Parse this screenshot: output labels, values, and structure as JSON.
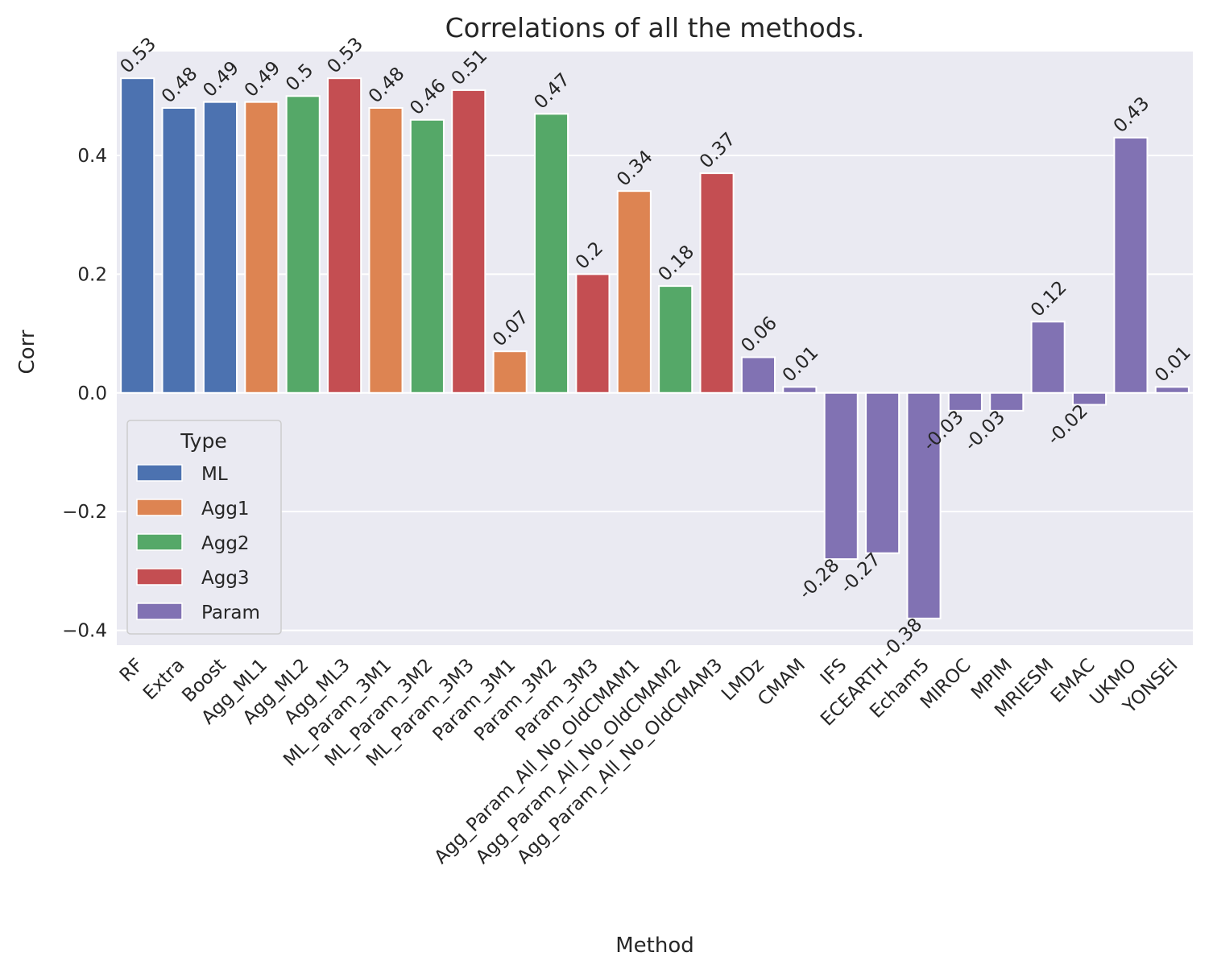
{
  "chart_data": {
    "type": "bar",
    "title": "Correlations of all the methods.",
    "xlabel": "Method",
    "ylabel": "Corr",
    "ylim": [
      -0.425,
      0.575
    ],
    "yticks": [
      {
        "value": -0.4,
        "label": "−0.4"
      },
      {
        "value": -0.2,
        "label": "−0.2"
      },
      {
        "value": 0.0,
        "label": "0.0"
      },
      {
        "value": 0.2,
        "label": "0.2"
      },
      {
        "value": 0.4,
        "label": "0.4"
      }
    ],
    "grid": true,
    "background": "#eaeaf2",
    "legend": {
      "title": "Type",
      "placement": "lower-left",
      "entries": [
        {
          "name": "ML",
          "color": "#4c72b0"
        },
        {
          "name": "Agg1",
          "color": "#dd8452"
        },
        {
          "name": "Agg2",
          "color": "#55a868"
        },
        {
          "name": "Agg3",
          "color": "#c44e52"
        },
        {
          "name": "Param",
          "color": "#8172b3"
        }
      ]
    },
    "bars": [
      {
        "category": "RF",
        "value": 0.53,
        "label": "0.53",
        "type": "ML"
      },
      {
        "category": "Extra",
        "value": 0.48,
        "label": "0.48",
        "type": "ML"
      },
      {
        "category": "Boost",
        "value": 0.49,
        "label": "0.49",
        "type": "ML"
      },
      {
        "category": "Agg_ML1",
        "value": 0.49,
        "label": "0.49",
        "type": "Agg1"
      },
      {
        "category": "Agg_ML2",
        "value": 0.5,
        "label": "0.5",
        "type": "Agg2"
      },
      {
        "category": "Agg_ML3",
        "value": 0.53,
        "label": "0.53",
        "type": "Agg3"
      },
      {
        "category": "ML_Param_3M1",
        "value": 0.48,
        "label": "0.48",
        "type": "Agg1"
      },
      {
        "category": "ML_Param_3M2",
        "value": 0.46,
        "label": "0.46",
        "type": "Agg2"
      },
      {
        "category": "ML_Param_3M3",
        "value": 0.51,
        "label": "0.51",
        "type": "Agg3"
      },
      {
        "category": "Param_3M1",
        "value": 0.07,
        "label": "0.07",
        "type": "Agg1"
      },
      {
        "category": "Param_3M2",
        "value": 0.47,
        "label": "0.47",
        "type": "Agg2"
      },
      {
        "category": "Param_3M3",
        "value": 0.2,
        "label": "0.2",
        "type": "Agg3"
      },
      {
        "category": "Agg_Param_All_No_OldCMAM1",
        "value": 0.34,
        "label": "0.34",
        "type": "Agg1"
      },
      {
        "category": "Agg_Param_All_No_OldCMAM2",
        "value": 0.18,
        "label": "0.18",
        "type": "Agg2"
      },
      {
        "category": "Agg_Param_All_No_OldCMAM3",
        "value": 0.37,
        "label": "0.37",
        "type": "Agg3"
      },
      {
        "category": "LMDz",
        "value": 0.06,
        "label": "0.06",
        "type": "Param"
      },
      {
        "category": "CMAM",
        "value": 0.01,
        "label": "0.01",
        "type": "Param"
      },
      {
        "category": "IFS",
        "value": -0.28,
        "label": "-0.28",
        "type": "Param"
      },
      {
        "category": "ECEARTH",
        "value": -0.27,
        "label": "-0.27",
        "type": "Param"
      },
      {
        "category": "Echam5",
        "value": -0.38,
        "label": "-0.38",
        "type": "Param"
      },
      {
        "category": "MIROC",
        "value": -0.03,
        "label": "-0.03",
        "type": "Param"
      },
      {
        "category": "MPIM",
        "value": -0.03,
        "label": "-0.03",
        "type": "Param"
      },
      {
        "category": "MRIESM",
        "value": 0.12,
        "label": "0.12",
        "type": "Param"
      },
      {
        "category": "EMAC",
        "value": -0.02,
        "label": "-0.02",
        "type": "Param"
      },
      {
        "category": "UKMO",
        "value": 0.43,
        "label": "0.43",
        "type": "Param"
      },
      {
        "category": "YONSEI",
        "value": 0.01,
        "label": "0.01",
        "type": "Param"
      }
    ]
  }
}
